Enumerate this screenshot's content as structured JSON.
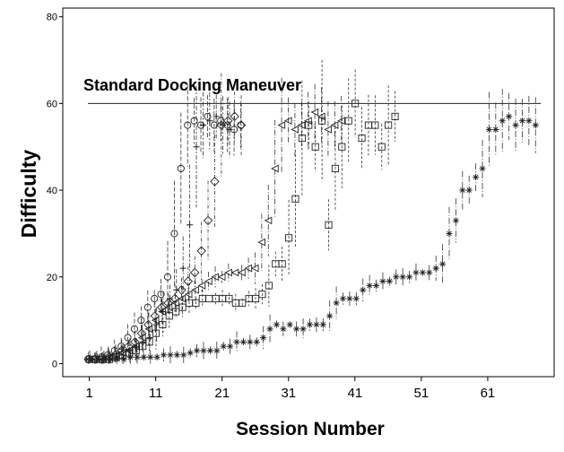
{
  "chart_data": {
    "type": "scatter",
    "xlabel": "Session Number",
    "ylabel": "Difficulty",
    "xlim": [
      -3,
      71
    ],
    "ylim": [
      -3,
      82
    ],
    "x_ticks": [
      1,
      11,
      21,
      31,
      41,
      51,
      61
    ],
    "y_ticks": [
      0,
      20,
      40,
      60,
      80
    ],
    "grid": false,
    "legend": "none",
    "reference_line": {
      "y": 60,
      "label": "Standard Docking Maneuver"
    },
    "error_bars": "dashed vertical whiskers around each point",
    "series": [
      {
        "marker": "circle",
        "points": [
          [
            1,
            1
          ],
          [
            2,
            1
          ],
          [
            3,
            1.5
          ],
          [
            4,
            2
          ],
          [
            5,
            3
          ],
          [
            6,
            4
          ],
          [
            7,
            6
          ],
          [
            8,
            8
          ],
          [
            9,
            10
          ],
          [
            10,
            13
          ],
          [
            11,
            15
          ],
          [
            12,
            16
          ],
          [
            13,
            20
          ],
          [
            14,
            30
          ],
          [
            15,
            45
          ],
          [
            16,
            55
          ],
          [
            17,
            56
          ],
          [
            18,
            55
          ],
          [
            19,
            57
          ],
          [
            20,
            55
          ],
          [
            21,
            56
          ],
          [
            22,
            55
          ],
          [
            23,
            54
          ],
          [
            24,
            55
          ]
        ]
      },
      {
        "marker": "diamond",
        "points": [
          [
            1,
            1
          ],
          [
            2,
            1
          ],
          [
            3,
            1
          ],
          [
            4,
            1.5
          ],
          [
            5,
            2
          ],
          [
            6,
            3
          ],
          [
            7,
            4
          ],
          [
            8,
            5
          ],
          [
            9,
            7
          ],
          [
            10,
            9
          ],
          [
            11,
            11
          ],
          [
            12,
            13
          ],
          [
            13,
            14
          ],
          [
            14,
            15
          ],
          [
            15,
            17
          ],
          [
            16,
            19
          ],
          [
            17,
            21
          ],
          [
            18,
            26
          ],
          [
            19,
            33
          ],
          [
            20,
            42
          ],
          [
            21,
            55
          ],
          [
            22,
            56
          ],
          [
            23,
            57
          ],
          [
            24,
            55
          ]
        ]
      },
      {
        "marker": "triangle-left",
        "points": [
          [
            1,
            1
          ],
          [
            2,
            1
          ],
          [
            3,
            1
          ],
          [
            4,
            1.5
          ],
          [
            5,
            2
          ],
          [
            6,
            2.5
          ],
          [
            7,
            3
          ],
          [
            8,
            4
          ],
          [
            9,
            6
          ],
          [
            10,
            8
          ],
          [
            11,
            10
          ],
          [
            12,
            12
          ],
          [
            13,
            13
          ],
          [
            14,
            14
          ],
          [
            15,
            15
          ],
          [
            16,
            16
          ],
          [
            17,
            17
          ],
          [
            18,
            18
          ],
          [
            19,
            19
          ],
          [
            20,
            20
          ],
          [
            21,
            20
          ],
          [
            22,
            21
          ],
          [
            23,
            21
          ],
          [
            24,
            21
          ],
          [
            25,
            22
          ],
          [
            26,
            22
          ],
          [
            27,
            28
          ],
          [
            28,
            33
          ],
          [
            29,
            45
          ],
          [
            30,
            55
          ],
          [
            31,
            56
          ],
          [
            32,
            54
          ],
          [
            33,
            55
          ],
          [
            34,
            56
          ],
          [
            35,
            58
          ],
          [
            36,
            57
          ],
          [
            37,
            54
          ],
          [
            38,
            55
          ],
          [
            39,
            56
          ]
        ]
      },
      {
        "marker": "square",
        "points": [
          [
            1,
            1
          ],
          [
            2,
            1
          ],
          [
            3,
            1
          ],
          [
            4,
            1
          ],
          [
            5,
            1.5
          ],
          [
            6,
            2
          ],
          [
            7,
            2.5
          ],
          [
            8,
            3
          ],
          [
            9,
            4
          ],
          [
            10,
            5
          ],
          [
            11,
            7
          ],
          [
            12,
            9
          ],
          [
            13,
            11
          ],
          [
            14,
            12
          ],
          [
            15,
            13
          ],
          [
            16,
            14
          ],
          [
            17,
            14
          ],
          [
            18,
            15
          ],
          [
            19,
            15
          ],
          [
            20,
            15
          ],
          [
            21,
            15
          ],
          [
            22,
            15
          ],
          [
            23,
            14
          ],
          [
            24,
            14
          ],
          [
            25,
            15
          ],
          [
            26,
            15
          ],
          [
            27,
            16
          ],
          [
            28,
            18
          ],
          [
            29,
            23
          ],
          [
            30,
            23
          ],
          [
            31,
            29
          ],
          [
            32,
            38
          ],
          [
            33,
            52
          ],
          [
            34,
            55
          ],
          [
            35,
            50
          ],
          [
            36,
            56
          ],
          [
            37,
            32
          ],
          [
            38,
            45
          ],
          [
            39,
            50
          ],
          [
            40,
            56
          ],
          [
            41,
            60
          ],
          [
            42,
            52
          ],
          [
            43,
            55
          ],
          [
            44,
            55
          ],
          [
            45,
            50
          ],
          [
            46,
            55
          ],
          [
            47,
            57
          ]
        ]
      },
      {
        "marker": "plus",
        "points": [
          [
            1,
            1
          ],
          [
            2,
            1
          ],
          [
            3,
            1
          ],
          [
            4,
            1
          ],
          [
            5,
            1.5
          ],
          [
            6,
            2
          ],
          [
            7,
            3
          ],
          [
            8,
            4
          ],
          [
            9,
            5
          ],
          [
            10,
            6
          ],
          [
            11,
            9
          ],
          [
            12,
            12
          ],
          [
            13,
            15
          ],
          [
            14,
            17
          ],
          [
            15,
            22
          ],
          [
            16,
            32
          ],
          [
            17,
            50
          ],
          [
            18,
            55
          ],
          [
            19,
            56
          ],
          [
            20,
            57
          ],
          [
            21,
            55
          ],
          [
            22,
            54
          ]
        ]
      },
      {
        "marker": "star",
        "points": [
          [
            1,
            1
          ],
          [
            2,
            1
          ],
          [
            3,
            1
          ],
          [
            4,
            1
          ],
          [
            5,
            1
          ],
          [
            6,
            1
          ],
          [
            7,
            1.5
          ],
          [
            8,
            1.5
          ],
          [
            9,
            1.5
          ],
          [
            10,
            1.5
          ],
          [
            11,
            1.5
          ],
          [
            12,
            2
          ],
          [
            13,
            2
          ],
          [
            14,
            2
          ],
          [
            15,
            2
          ],
          [
            16,
            2.5
          ],
          [
            17,
            3
          ],
          [
            18,
            3
          ],
          [
            19,
            3
          ],
          [
            20,
            3
          ],
          [
            21,
            4
          ],
          [
            22,
            4
          ],
          [
            23,
            5
          ],
          [
            24,
            5
          ],
          [
            25,
            5
          ],
          [
            26,
            5
          ],
          [
            27,
            6
          ],
          [
            28,
            8
          ],
          [
            29,
            9
          ],
          [
            30,
            8
          ],
          [
            31,
            9
          ],
          [
            32,
            8
          ],
          [
            33,
            8
          ],
          [
            34,
            9
          ],
          [
            35,
            9
          ],
          [
            36,
            9
          ],
          [
            37,
            11
          ],
          [
            38,
            14
          ],
          [
            39,
            15
          ],
          [
            40,
            15
          ],
          [
            41,
            15
          ],
          [
            42,
            17
          ],
          [
            43,
            18
          ],
          [
            44,
            18
          ],
          [
            45,
            19
          ],
          [
            46,
            19
          ],
          [
            47,
            20
          ],
          [
            48,
            20
          ],
          [
            49,
            20
          ],
          [
            50,
            21
          ],
          [
            51,
            21
          ],
          [
            52,
            21
          ],
          [
            53,
            22
          ],
          [
            54,
            23
          ],
          [
            55,
            30
          ],
          [
            56,
            33
          ],
          [
            57,
            40
          ],
          [
            58,
            40
          ],
          [
            59,
            43
          ],
          [
            60,
            45
          ],
          [
            61,
            54
          ],
          [
            62,
            54
          ],
          [
            63,
            56
          ],
          [
            64,
            57
          ],
          [
            65,
            55
          ],
          [
            66,
            56
          ],
          [
            67,
            56
          ],
          [
            68,
            55
          ]
        ]
      }
    ]
  }
}
